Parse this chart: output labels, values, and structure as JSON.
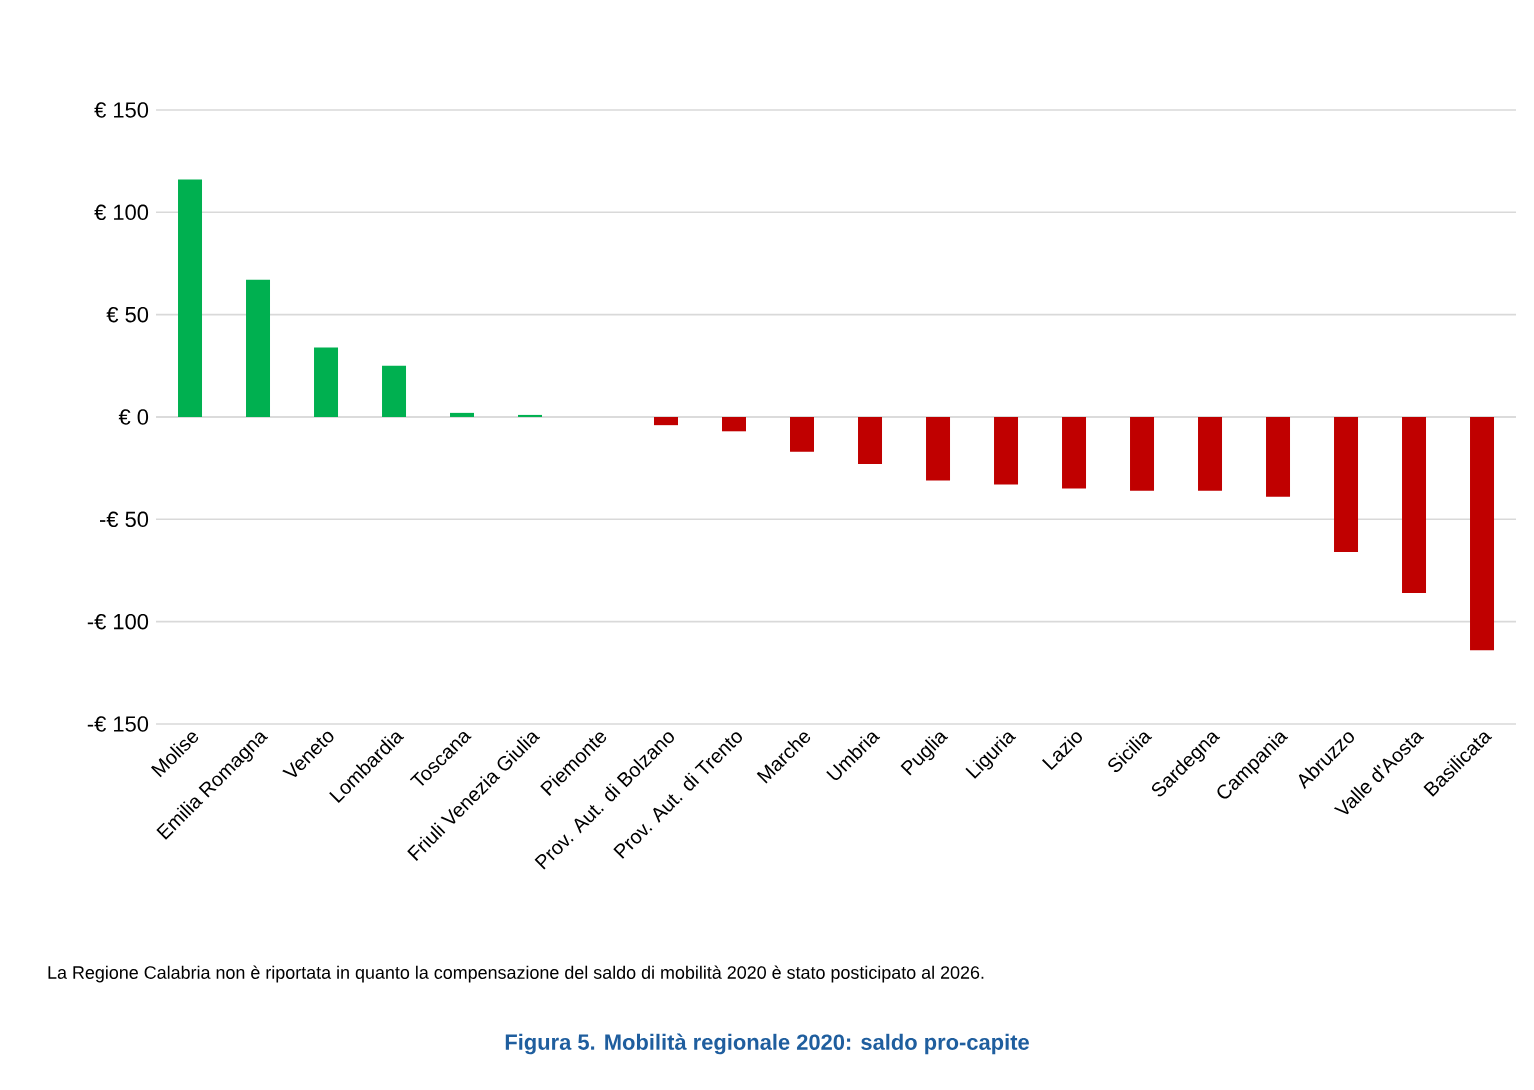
{
  "chart_data": {
    "type": "bar",
    "title": "Figura 5. Mobilità regionale 2020: saldo pro-capite",
    "categories": [
      "Molise",
      "Emilia Romagna",
      "Veneto",
      "Lombardia",
      "Toscana",
      "Friuli Venezia Giulia",
      "Piemonte",
      "Prov. Aut. di Bolzano",
      "Prov. Aut. di Trento",
      "Marche",
      "Umbria",
      "Puglia",
      "Liguria",
      "Lazio",
      "Sicilia",
      "Sardegna",
      "Campania",
      "Abruzzo",
      "Valle d'Aosta",
      "Basilicata"
    ],
    "values": [
      116,
      67,
      34,
      25,
      2,
      1,
      0,
      -4,
      -7,
      -17,
      -23,
      -31,
      -33,
      -35,
      -36,
      -36,
      -39,
      -66,
      -86,
      -114
    ],
    "colors": [
      "#00b050",
      "#00b050",
      "#00b050",
      "#00b050",
      "#00b050",
      "#00b050",
      "#00b050",
      "#c00000",
      "#c00000",
      "#c00000",
      "#c00000",
      "#c00000",
      "#c00000",
      "#c00000",
      "#c00000",
      "#c00000",
      "#c00000",
      "#c00000",
      "#c00000",
      "#c00000"
    ],
    "ylim": [
      -150,
      150
    ],
    "yticks": [
      {
        "value": -150,
        "label": "-€ 150"
      },
      {
        "value": -100,
        "label": "-€ 100"
      },
      {
        "value": -50,
        "label": "-€ 50"
      },
      {
        "value": 0,
        "label": "€ 0"
      },
      {
        "value": 50,
        "label": "€ 50"
      },
      {
        "value": 100,
        "label": "€ 100"
      },
      {
        "value": 150,
        "label": "€ 150"
      }
    ],
    "grid": "y",
    "annotations": [
      "La Regione Calabria non è riportata in quanto la compensazione del saldo di mobilità 2020 è stato posticipato al 2026."
    ]
  }
}
